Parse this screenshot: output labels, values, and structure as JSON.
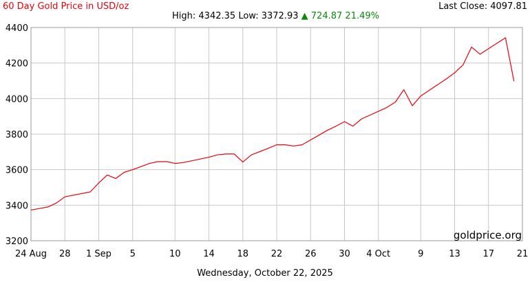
{
  "header": {
    "title": "60 Day Gold Price in USD/oz",
    "last_close_label": "Last Close:",
    "last_close_value": "4097.81",
    "high_label": "High:",
    "high_value": "4342.35",
    "low_label": "Low:",
    "low_value": "3372.93",
    "change_arrow": "▲",
    "change_value": "724.87",
    "change_pct": "21.49%"
  },
  "watermark": "goldprice.org",
  "footer_date": "Wednesday, October 22, 2025",
  "colors": {
    "line": "#e8000b",
    "grid": "#c8c8c8",
    "change": "#0a8a0a",
    "title": "#e8000b"
  },
  "chart_data": {
    "type": "line",
    "title": "60 Day Gold Price in USD/oz",
    "xlabel": "",
    "ylabel": "",
    "grid": true,
    "ylim": [
      3200,
      4400
    ],
    "yticks": [
      3200,
      3400,
      3600,
      3800,
      4000,
      4200,
      4400
    ],
    "x_range": [
      "2025-08-24",
      "2025-10-21"
    ],
    "xticks": [
      {
        "date": "2025-08-24",
        "label": "24 Aug"
      },
      {
        "date": "2025-08-28",
        "label": "28"
      },
      {
        "date": "2025-09-01",
        "label": "1 Sep"
      },
      {
        "date": "2025-09-05",
        "label": "5"
      },
      {
        "date": "2025-09-10",
        "label": "10"
      },
      {
        "date": "2025-09-14",
        "label": "14"
      },
      {
        "date": "2025-09-18",
        "label": "18"
      },
      {
        "date": "2025-09-22",
        "label": "22"
      },
      {
        "date": "2025-09-26",
        "label": "26"
      },
      {
        "date": "2025-09-30",
        "label": "30"
      },
      {
        "date": "2025-10-04",
        "label": "4 Oct"
      },
      {
        "date": "2025-10-09",
        "label": "9"
      },
      {
        "date": "2025-10-13",
        "label": "13"
      },
      {
        "date": "2025-10-17",
        "label": "17"
      },
      {
        "date": "2025-10-21",
        "label": "21"
      }
    ],
    "series": [
      {
        "points": [
          [
            "2025-08-24",
            3373
          ],
          [
            "2025-08-25",
            3381
          ],
          [
            "2025-08-26",
            3390
          ],
          [
            "2025-08-27",
            3412
          ],
          [
            "2025-08-28",
            3447
          ],
          [
            "2025-08-31",
            3475
          ],
          [
            "2025-09-01",
            3525
          ],
          [
            "2025-09-02",
            3570
          ],
          [
            "2025-09-03",
            3550
          ],
          [
            "2025-09-04",
            3585
          ],
          [
            "2025-09-05",
            3600
          ],
          [
            "2025-09-07",
            3635
          ],
          [
            "2025-09-08",
            3645
          ],
          [
            "2025-09-09",
            3645
          ],
          [
            "2025-09-10",
            3635
          ],
          [
            "2025-09-11",
            3640
          ],
          [
            "2025-09-14",
            3670
          ],
          [
            "2025-09-15",
            3683
          ],
          [
            "2025-09-16",
            3688
          ],
          [
            "2025-09-17",
            3688
          ],
          [
            "2025-09-18",
            3643
          ],
          [
            "2025-09-19",
            3683
          ],
          [
            "2025-09-21",
            3720
          ],
          [
            "2025-09-22",
            3740
          ],
          [
            "2025-09-23",
            3740
          ],
          [
            "2025-09-24",
            3733
          ],
          [
            "2025-09-25",
            3740
          ],
          [
            "2025-09-28",
            3822
          ],
          [
            "2025-09-29",
            3845
          ],
          [
            "2025-09-30",
            3870
          ],
          [
            "2025-10-01",
            3845
          ],
          [
            "2025-10-02",
            3885
          ],
          [
            "2025-10-05",
            3950
          ],
          [
            "2025-10-06",
            3980
          ],
          [
            "2025-10-07",
            4050
          ],
          [
            "2025-10-08",
            3960
          ],
          [
            "2025-10-09",
            4015
          ],
          [
            "2025-10-12",
            4110
          ],
          [
            "2025-10-13",
            4145
          ],
          [
            "2025-10-14",
            4190
          ],
          [
            "2025-10-15",
            4290
          ],
          [
            "2025-10-16",
            4250
          ],
          [
            "2025-10-19",
            4342.35
          ],
          [
            "2025-10-20",
            4097.81
          ]
        ]
      }
    ]
  }
}
